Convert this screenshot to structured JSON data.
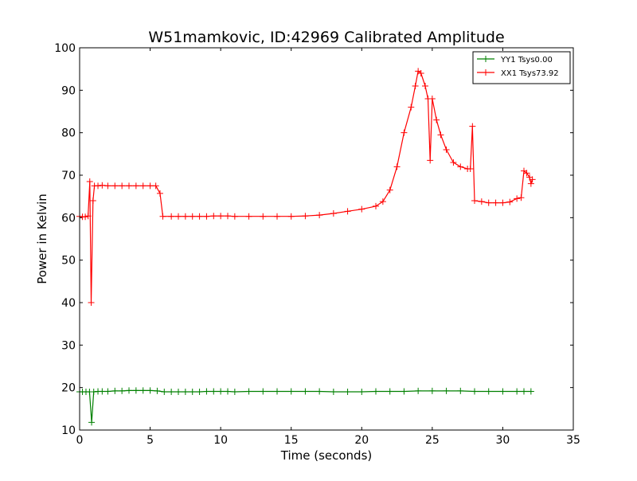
{
  "chart_data": {
    "type": "line",
    "title": "W51mamkovic, ID:42969 Calibrated Amplitude",
    "xlabel": "Time (seconds)",
    "ylabel": "Power in Kelvin",
    "xlim": [
      0,
      35
    ],
    "ylim": [
      10,
      100
    ],
    "x_ticks": [
      0,
      5,
      10,
      15,
      20,
      25,
      30,
      35
    ],
    "y_ticks": [
      10,
      20,
      30,
      40,
      50,
      60,
      70,
      80,
      90,
      100
    ],
    "x_tick_labels": [
      "0",
      "5",
      "10",
      "15",
      "20",
      "25",
      "30",
      "35"
    ],
    "y_tick_labels": [
      "10",
      "20",
      "30",
      "40",
      "50",
      "60",
      "70",
      "80",
      "90",
      "100"
    ],
    "grid": false,
    "legend_position": "top-right",
    "marker": "plus",
    "series": [
      {
        "name": "YY1 Tsys0.00",
        "color": "#008000",
        "points": [
          [
            0.0,
            19.0
          ],
          [
            0.2,
            19.0
          ],
          [
            0.45,
            19.0
          ],
          [
            0.7,
            19.0
          ],
          [
            0.85,
            11.8
          ],
          [
            1.0,
            19.0
          ],
          [
            1.3,
            19.1
          ],
          [
            1.6,
            19.1
          ],
          [
            2.0,
            19.1
          ],
          [
            2.5,
            19.2
          ],
          [
            3.0,
            19.2
          ],
          [
            3.5,
            19.3
          ],
          [
            4.0,
            19.3
          ],
          [
            4.5,
            19.3
          ],
          [
            5.0,
            19.3
          ],
          [
            5.5,
            19.2
          ],
          [
            6.0,
            19.0
          ],
          [
            6.5,
            19.0
          ],
          [
            7.0,
            19.0
          ],
          [
            7.5,
            19.0
          ],
          [
            8.0,
            19.0
          ],
          [
            8.5,
            19.0
          ],
          [
            9.0,
            19.1
          ],
          [
            9.5,
            19.1
          ],
          [
            10.0,
            19.1
          ],
          [
            10.5,
            19.1
          ],
          [
            11.0,
            19.0
          ],
          [
            12.0,
            19.1
          ],
          [
            13.0,
            19.1
          ],
          [
            14.0,
            19.1
          ],
          [
            15.0,
            19.1
          ],
          [
            16.0,
            19.1
          ],
          [
            17.0,
            19.1
          ],
          [
            18.0,
            19.0
          ],
          [
            19.0,
            19.0
          ],
          [
            20.0,
            19.0
          ],
          [
            21.0,
            19.1
          ],
          [
            22.0,
            19.1
          ],
          [
            23.0,
            19.1
          ],
          [
            24.0,
            19.2
          ],
          [
            25.0,
            19.2
          ],
          [
            26.0,
            19.2
          ],
          [
            27.0,
            19.2
          ],
          [
            28.0,
            19.1
          ],
          [
            29.0,
            19.1
          ],
          [
            30.0,
            19.1
          ],
          [
            31.0,
            19.1
          ],
          [
            31.5,
            19.1
          ],
          [
            32.0,
            19.1
          ]
        ]
      },
      {
        "name": "XX1 Tsys73.92",
        "color": "#ff0000",
        "points": [
          [
            0.0,
            60.3
          ],
          [
            0.2,
            60.2
          ],
          [
            0.4,
            60.2
          ],
          [
            0.6,
            60.4
          ],
          [
            0.72,
            68.5
          ],
          [
            0.82,
            40.0
          ],
          [
            0.95,
            64.0
          ],
          [
            1.05,
            67.5
          ],
          [
            1.3,
            67.5
          ],
          [
            1.6,
            67.6
          ],
          [
            2.0,
            67.5
          ],
          [
            2.5,
            67.5
          ],
          [
            3.0,
            67.5
          ],
          [
            3.5,
            67.5
          ],
          [
            4.0,
            67.5
          ],
          [
            4.5,
            67.5
          ],
          [
            5.0,
            67.5
          ],
          [
            5.4,
            67.5
          ],
          [
            5.7,
            65.7
          ],
          [
            5.9,
            60.3
          ],
          [
            6.5,
            60.3
          ],
          [
            7.0,
            60.3
          ],
          [
            7.5,
            60.3
          ],
          [
            8.0,
            60.3
          ],
          [
            8.5,
            60.3
          ],
          [
            9.0,
            60.3
          ],
          [
            9.5,
            60.4
          ],
          [
            10.0,
            60.4
          ],
          [
            10.5,
            60.4
          ],
          [
            11.0,
            60.3
          ],
          [
            12.0,
            60.3
          ],
          [
            13.0,
            60.3
          ],
          [
            14.0,
            60.3
          ],
          [
            15.0,
            60.3
          ],
          [
            16.0,
            60.4
          ],
          [
            17.0,
            60.6
          ],
          [
            18.0,
            61.0
          ],
          [
            19.0,
            61.5
          ],
          [
            20.0,
            62.0
          ],
          [
            21.0,
            62.7
          ],
          [
            21.5,
            63.8
          ],
          [
            22.0,
            66.5
          ],
          [
            22.5,
            72.0
          ],
          [
            23.0,
            80.0
          ],
          [
            23.5,
            86.0
          ],
          [
            23.8,
            91.0
          ],
          [
            24.0,
            94.5
          ],
          [
            24.2,
            94.0
          ],
          [
            24.5,
            91.0
          ],
          [
            24.7,
            88.0
          ],
          [
            24.85,
            73.5
          ],
          [
            25.0,
            88.0
          ],
          [
            25.3,
            83.0
          ],
          [
            25.6,
            79.5
          ],
          [
            26.0,
            76.0
          ],
          [
            26.5,
            73.0
          ],
          [
            27.0,
            72.0
          ],
          [
            27.5,
            71.5
          ],
          [
            27.7,
            71.5
          ],
          [
            27.85,
            81.5
          ],
          [
            28.0,
            64.0
          ],
          [
            28.5,
            63.8
          ],
          [
            29.0,
            63.5
          ],
          [
            29.5,
            63.5
          ],
          [
            30.0,
            63.5
          ],
          [
            30.5,
            63.7
          ],
          [
            31.0,
            64.5
          ],
          [
            31.3,
            64.7
          ],
          [
            31.5,
            71.0
          ],
          [
            31.7,
            70.5
          ],
          [
            31.9,
            69.5
          ],
          [
            32.0,
            68.0
          ],
          [
            32.1,
            69.0
          ]
        ]
      }
    ]
  }
}
